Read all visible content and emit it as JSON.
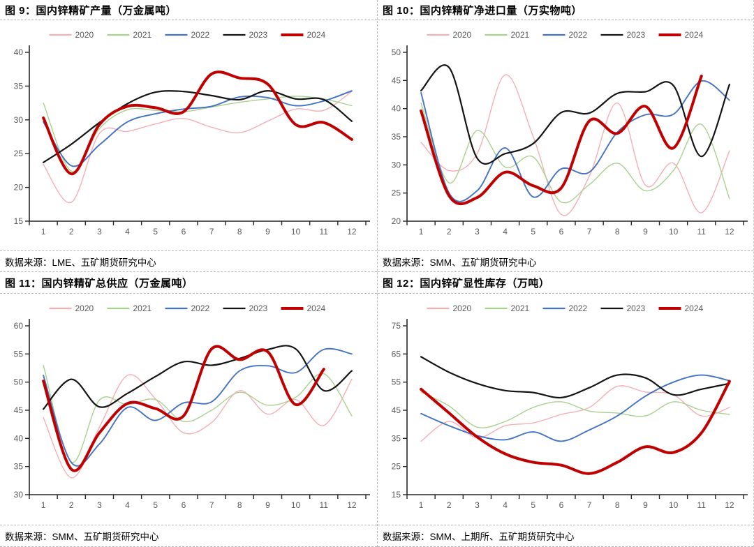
{
  "report": {
    "language": "zh-CN",
    "colors": {
      "axis": "#262626",
      "tick_label": "#595959",
      "divider": "#b5b5b5",
      "title_text": "#000000"
    }
  },
  "legend_years": [
    {
      "label": "2020",
      "color": "#F3AFB5",
      "width": 1.4
    },
    {
      "label": "2021",
      "color": "#A9D18E",
      "width": 1.4
    },
    {
      "label": "2022",
      "color": "#4472C4",
      "width": 1.9
    },
    {
      "label": "2023",
      "color": "#141414",
      "width": 2.2
    },
    {
      "label": "2024",
      "color": "#C00000",
      "width": 4.0
    }
  ],
  "chart_data": [
    {
      "type": "line",
      "title": "图 9：国内锌精矿产量（万金属吨）",
      "source": "数据来源：LME、五矿期货研究中心",
      "xlabel": "",
      "ylabel": "",
      "legend_position": "top",
      "grid": false,
      "ylim": [
        15,
        40
      ],
      "ystep": 5,
      "categories": [
        1,
        2,
        3,
        4,
        5,
        6,
        7,
        8,
        9,
        10,
        11,
        12
      ],
      "series": [
        {
          "name": "2020",
          "values": [
            23.4,
            17.8,
            28.0,
            28.3,
            29.4,
            30.2,
            28.9,
            28.1,
            29.8,
            31.6,
            31.4,
            34.2
          ]
        },
        {
          "name": "2021",
          "values": [
            32.5,
            22.4,
            28.7,
            31.5,
            31.4,
            31.2,
            31.9,
            32.6,
            33.1,
            33.5,
            33.1,
            32.1
          ]
        },
        {
          "name": "2022",
          "values": [
            29.7,
            23.2,
            26.3,
            29.7,
            30.9,
            31.6,
            32.0,
            33.4,
            33.3,
            32.1,
            32.8,
            34.3
          ]
        },
        {
          "name": "2023",
          "values": [
            23.7,
            26.4,
            29.6,
            32.4,
            34.1,
            34.2,
            33.6,
            33.0,
            34.3,
            33.1,
            33.0,
            29.8
          ]
        },
        {
          "name": "2024",
          "values": [
            30.3,
            22.0,
            29.3,
            32.0,
            31.8,
            31.2,
            36.8,
            36.2,
            35.3,
            29.3,
            29.6,
            27.1
          ]
        }
      ]
    },
    {
      "type": "line",
      "title": "图 10：国内锌精矿净进口量（万实物吨）",
      "source": "数据来源：SMM、五矿期货研究中心",
      "xlabel": "",
      "ylabel": "",
      "legend_position": "top",
      "grid": false,
      "ylim": [
        20,
        50
      ],
      "ystep": 5,
      "categories": [
        1,
        2,
        3,
        4,
        5,
        6,
        7,
        8,
        9,
        10,
        11,
        12
      ],
      "series": [
        {
          "name": "2020",
          "values": [
            34.0,
            29.0,
            32.0,
            46.0,
            35.0,
            21.2,
            28.0,
            41.0,
            26.4,
            30.3,
            21.5,
            32.5
          ]
        },
        {
          "name": "2021",
          "values": [
            41.0,
            26.8,
            36.1,
            29.6,
            31.4,
            23.4,
            26.5,
            30.3,
            25.4,
            29.0,
            37.2,
            24.0
          ]
        },
        {
          "name": "2022",
          "values": [
            42.8,
            25.0,
            25.4,
            33.0,
            24.3,
            29.3,
            28.7,
            35.8,
            38.9,
            39.0,
            44.9,
            41.5
          ]
        },
        {
          "name": "2023",
          "values": [
            43.2,
            47.3,
            31.2,
            32.0,
            33.8,
            39.3,
            39.2,
            42.7,
            43.0,
            44.1,
            31.5,
            44.3
          ]
        },
        {
          "name": "2024",
          "values": [
            39.6,
            24.5,
            24.2,
            28.7,
            26.3,
            25.9,
            37.8,
            35.6,
            40.4,
            33.0,
            45.8
          ]
        }
      ]
    },
    {
      "type": "line",
      "title": "图 11：国内锌精矿总供应（万金属吨）",
      "source": "数据来源：SMM、五矿期货研究中心",
      "xlabel": "",
      "ylabel": "",
      "legend_position": "top",
      "grid": false,
      "ylim": [
        30,
        60
      ],
      "ystep": 5,
      "categories": [
        1,
        2,
        3,
        4,
        5,
        6,
        7,
        8,
        9,
        10,
        11,
        12
      ],
      "series": [
        {
          "name": "2020",
          "values": [
            43.7,
            33.0,
            42.0,
            51.2,
            47.0,
            41.0,
            42.8,
            48.5,
            44.3,
            46.9,
            42.3,
            50.5
          ]
        },
        {
          "name": "2021",
          "values": [
            53.0,
            35.8,
            46.8,
            46.0,
            46.9,
            43.0,
            45.0,
            48.2,
            45.9,
            47.3,
            51.5,
            44.0
          ]
        },
        {
          "name": "2022",
          "values": [
            51.2,
            35.7,
            39.0,
            45.5,
            43.2,
            46.3,
            46.5,
            52.0,
            52.9,
            51.7,
            55.8,
            55.0
          ]
        },
        {
          "name": "2023",
          "values": [
            45.2,
            50.5,
            45.6,
            48.0,
            51.0,
            53.6,
            53.0,
            54.2,
            55.8,
            55.9,
            48.5,
            52.0
          ]
        },
        {
          "name": "2024",
          "values": [
            50.2,
            34.5,
            41.0,
            46.2,
            45.3,
            44.0,
            55.9,
            54.0,
            55.4,
            46.0,
            52.3
          ]
        }
      ]
    },
    {
      "type": "line",
      "title": "图 12：国内锌矿显性库存（万吨）",
      "source": "数据来源：SMM、上期所、五矿期货研究中心",
      "xlabel": "",
      "ylabel": "",
      "legend_position": "top",
      "grid": false,
      "ylim": [
        15,
        75
      ],
      "ystep": 10,
      "categories": [
        1,
        2,
        3,
        4,
        5,
        6,
        7,
        8,
        9,
        10,
        11,
        12
      ],
      "series": [
        {
          "name": "2020",
          "values": [
            34.0,
            41.0,
            35.2,
            39.5,
            40.5,
            43.5,
            46.0,
            53.5,
            51.5,
            50.5,
            43.0,
            46.0
          ]
        },
        {
          "name": "2021",
          "values": [
            51.5,
            46.5,
            39.0,
            41.0,
            46.0,
            48.0,
            44.7,
            44.0,
            43.0,
            48.0,
            45.0,
            43.5
          ]
        },
        {
          "name": "2022",
          "values": [
            43.8,
            39.5,
            36.0,
            34.5,
            37.3,
            34.0,
            38.0,
            43.0,
            50.0,
            55.0,
            57.5,
            55.5
          ]
        },
        {
          "name": "2023",
          "values": [
            64.0,
            58.5,
            54.5,
            52.0,
            51.3,
            49.5,
            53.0,
            57.5,
            56.5,
            50.5,
            52.5,
            54.5
          ]
        },
        {
          "name": "2024",
          "values": [
            52.5,
            44.0,
            35.5,
            29.5,
            26.5,
            25.5,
            22.5,
            26.5,
            32.0,
            30.0,
            37.0,
            55.3
          ]
        }
      ]
    }
  ]
}
